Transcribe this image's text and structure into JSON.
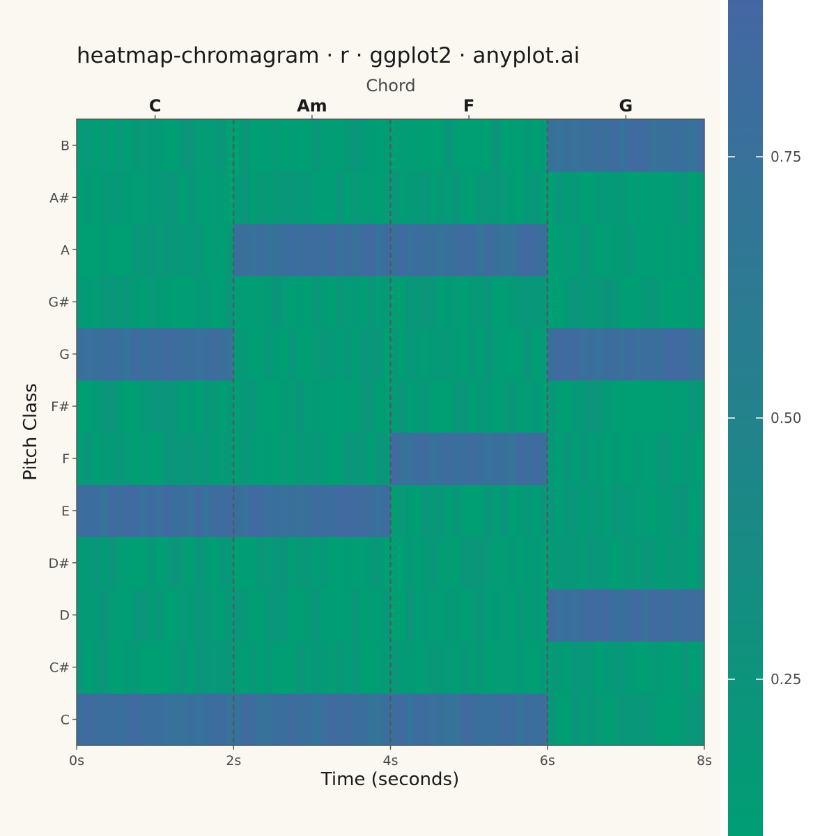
{
  "chart_data": {
    "type": "heatmap",
    "title": "heatmap-chromagram · r · ggplot2 · anyplot.ai",
    "xlabel": "Time (seconds)",
    "ylabel": "Pitch Class",
    "secondary_axis_label": "Chord",
    "xlim": [
      0,
      8
    ],
    "x_ticks": [
      0,
      2,
      4,
      6,
      8
    ],
    "x_tick_labels": [
      "0s",
      "2s",
      "4s",
      "6s",
      "8s"
    ],
    "pitch_classes": [
      "C",
      "C#",
      "D",
      "D#",
      "E",
      "F",
      "F#",
      "G",
      "G#",
      "A",
      "A#",
      "B"
    ],
    "frames_per_second": 10,
    "chords": [
      {
        "name": "C",
        "start": 0,
        "end": 2,
        "tones": [
          "C",
          "E",
          "G"
        ]
      },
      {
        "name": "Am",
        "start": 2,
        "end": 4,
        "tones": [
          "A",
          "C",
          "E"
        ]
      },
      {
        "name": "F",
        "start": 4,
        "end": 6,
        "tones": [
          "F",
          "A",
          "C"
        ]
      },
      {
        "name": "G",
        "start": 6,
        "end": 8,
        "tones": [
          "G",
          "B",
          "D"
        ]
      }
    ],
    "chord_boundaries": [
      2,
      4,
      6
    ],
    "chord_tone_energy": [
      0.72,
      0.86
    ],
    "background_energy": [
      0.06,
      0.24
    ],
    "colorbar": {
      "range": [
        0.1,
        0.9
      ],
      "ticks": [
        0.25,
        0.5,
        0.75
      ],
      "tick_labels": [
        "0.25",
        "0.50",
        "0.75"
      ],
      "low_color": "#009E73",
      "high_color": "#4467A3"
    },
    "grid": false
  },
  "colors": {
    "background": "#FAF8F1",
    "panel_border": "#555555",
    "boundary_line": "#555555",
    "text": "#1A1A1A",
    "muted_text": "#4A4A4A"
  }
}
